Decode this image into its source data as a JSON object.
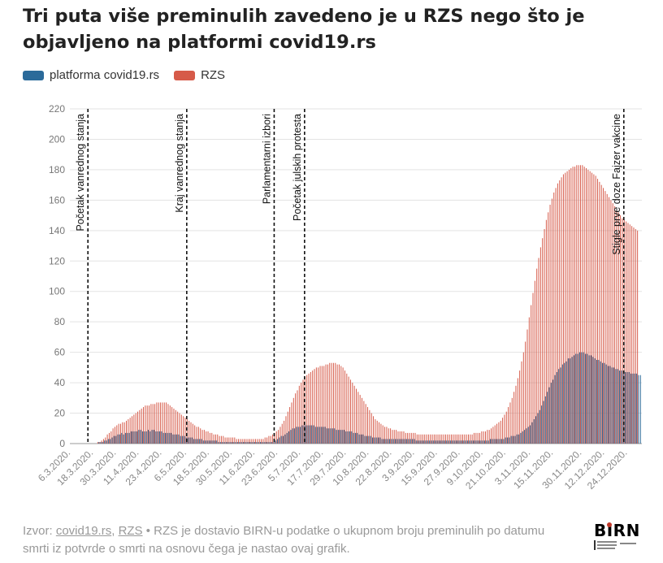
{
  "title": "Tri puta više preminulih zavedeno je u RZS nego što je objavljeno na platformi covid19.rs",
  "legend": [
    {
      "label": "platforma covid19.rs",
      "color": "#2b6a9a"
    },
    {
      "label": "RZS",
      "color": "#d65a49"
    }
  ],
  "footer": {
    "prefix": "Izvor: ",
    "source1": "covid19.rs",
    "sep": ", ",
    "source2": "RZS",
    "text": " • RZS je dostavio BIRN-u podatke o ukupnom broju preminulih po datumu smrti iz potvrde o smrti na osnovu čega je nastao ovaj grafik."
  },
  "logo": {
    "text": "BIRN",
    "subtext": "BALKAN INVESTIGATIVE REPORTING NETWORK · SERBIA"
  },
  "chart_data": {
    "type": "bar",
    "start_date": "2020-03-06",
    "end_date": "2020-12-31",
    "ylim": [
      0,
      220
    ],
    "yticks": [
      0,
      20,
      40,
      60,
      80,
      100,
      120,
      140,
      160,
      180,
      200,
      220
    ],
    "xticks": [
      "6.3.2020.",
      "18.3.2020.",
      "30.3.2020.",
      "11.4.2020.",
      "23.4.2020.",
      "6.5.2020.",
      "18.5.2020.",
      "30.5.2020.",
      "11.6.2020.",
      "23.6.2020.",
      "5.7.2020.",
      "17.7.2020.",
      "29.7.2020.",
      "10.8.2020.",
      "22.8.2020.",
      "3.9.2020.",
      "15.9.2020.",
      "27.9.2020.",
      "9.10.2020.",
      "21.10.2020.",
      "3.11.2020.",
      "15.11.2020.",
      "30.11.2020.",
      "12.12.2020.",
      "24.12.2020."
    ],
    "grid": true,
    "legend_position": "top-left",
    "series": [
      {
        "name": "platforma covid19.rs",
        "color": "#2b6a9a",
        "values": [
          0,
          0,
          0,
          0,
          0,
          0,
          0,
          0,
          0,
          0,
          0,
          0,
          0,
          0,
          0,
          1,
          1,
          1,
          2,
          2,
          3,
          3,
          4,
          5,
          5,
          6,
          6,
          7,
          6,
          7,
          7,
          7,
          8,
          8,
          8,
          8,
          9,
          9,
          8,
          8,
          8,
          9,
          8,
          9,
          9,
          8,
          8,
          8,
          8,
          7,
          7,
          7,
          7,
          7,
          6,
          6,
          6,
          6,
          5,
          5,
          5,
          4,
          4,
          4,
          4,
          3,
          3,
          3,
          3,
          3,
          2,
          2,
          2,
          2,
          2,
          2,
          2,
          2,
          1,
          1,
          1,
          1,
          1,
          1,
          1,
          1,
          1,
          1,
          1,
          1,
          1,
          1,
          1,
          1,
          1,
          1,
          1,
          1,
          1,
          1,
          1,
          1,
          1,
          1,
          1,
          1,
          1,
          1,
          2,
          3,
          4,
          5,
          5,
          6,
          7,
          8,
          9,
          10,
          10,
          11,
          11,
          11,
          12,
          12,
          12,
          12,
          12,
          12,
          12,
          11,
          11,
          11,
          11,
          11,
          11,
          10,
          10,
          10,
          10,
          10,
          9,
          9,
          9,
          9,
          9,
          8,
          8,
          8,
          8,
          7,
          7,
          7,
          6,
          6,
          6,
          5,
          5,
          5,
          5,
          4,
          4,
          4,
          4,
          4,
          3,
          3,
          3,
          3,
          3,
          3,
          3,
          3,
          3,
          3,
          3,
          3,
          3,
          3,
          3,
          3,
          3,
          3,
          2,
          2,
          2,
          2,
          2,
          2,
          2,
          2,
          2,
          2,
          2,
          2,
          2,
          2,
          2,
          2,
          2,
          2,
          2,
          2,
          2,
          2,
          2,
          2,
          2,
          2,
          2,
          2,
          2,
          2,
          2,
          2,
          2,
          2,
          2,
          2,
          2,
          2,
          2,
          3,
          3,
          3,
          3,
          3,
          3,
          3,
          3,
          4,
          4,
          4,
          5,
          5,
          5,
          6,
          6,
          7,
          8,
          9,
          10,
          11,
          12,
          14,
          16,
          18,
          20,
          22,
          25,
          28,
          31,
          34,
          37,
          40,
          42,
          45,
          47,
          49,
          50,
          52,
          53,
          54,
          56,
          56,
          57,
          58,
          59,
          59,
          60,
          60,
          60,
          59,
          59,
          58,
          58,
          57,
          56,
          55,
          55,
          54,
          53,
          53,
          52,
          51,
          51,
          50,
          50,
          49,
          49,
          48,
          48,
          48,
          47,
          47,
          47,
          46,
          46,
          46,
          46,
          45,
          45
        ]
      },
      {
        "name": "RZS",
        "color": "#d65a49",
        "values": [
          0,
          0,
          0,
          0,
          0,
          0,
          0,
          0,
          0,
          0,
          0,
          0,
          0,
          0,
          1,
          1,
          2,
          3,
          4,
          6,
          7,
          8,
          10,
          11,
          12,
          13,
          13,
          14,
          14,
          15,
          16,
          17,
          18,
          19,
          20,
          21,
          22,
          23,
          24,
          25,
          25,
          25,
          26,
          26,
          26,
          27,
          27,
          27,
          27,
          27,
          27,
          26,
          25,
          24,
          23,
          22,
          21,
          20,
          19,
          18,
          17,
          16,
          15,
          14,
          13,
          12,
          11,
          11,
          10,
          9,
          9,
          8,
          8,
          7,
          7,
          6,
          6,
          6,
          5,
          5,
          5,
          4,
          4,
          4,
          4,
          4,
          4,
          3,
          3,
          3,
          3,
          3,
          3,
          3,
          3,
          3,
          3,
          3,
          3,
          3,
          3,
          3,
          4,
          4,
          5,
          5,
          6,
          7,
          8,
          9,
          11,
          13,
          15,
          18,
          21,
          24,
          27,
          30,
          33,
          35,
          38,
          40,
          42,
          44,
          45,
          46,
          47,
          48,
          49,
          50,
          50,
          51,
          51,
          51,
          52,
          52,
          53,
          53,
          53,
          53,
          52,
          52,
          51,
          50,
          48,
          46,
          44,
          42,
          40,
          38,
          36,
          34,
          32,
          30,
          28,
          26,
          24,
          22,
          20,
          18,
          16,
          15,
          14,
          13,
          12,
          11,
          11,
          10,
          10,
          9,
          9,
          9,
          8,
          8,
          8,
          8,
          7,
          7,
          7,
          7,
          7,
          7,
          6,
          6,
          6,
          6,
          6,
          6,
          6,
          6,
          6,
          6,
          6,
          6,
          6,
          6,
          6,
          6,
          6,
          6,
          6,
          6,
          6,
          6,
          6,
          6,
          6,
          6,
          6,
          6,
          6,
          6,
          7,
          7,
          7,
          7,
          8,
          8,
          8,
          9,
          9,
          10,
          11,
          12,
          13,
          14,
          15,
          17,
          19,
          21,
          24,
          27,
          30,
          34,
          38,
          43,
          48,
          54,
          60,
          67,
          75,
          83,
          91,
          99,
          107,
          115,
          122,
          129,
          135,
          141,
          147,
          152,
          157,
          161,
          165,
          168,
          171,
          173,
          175,
          177,
          178,
          179,
          180,
          181,
          182,
          182,
          183,
          183,
          183,
          183,
          182,
          181,
          180,
          179,
          178,
          177,
          176,
          174,
          172,
          170,
          168,
          166,
          164,
          162,
          160,
          158,
          156,
          154,
          152,
          150,
          148,
          147,
          146,
          145,
          144,
          143,
          142,
          141,
          140
        ]
      }
    ],
    "annotations": [
      {
        "date": "2020-03-15",
        "label": "Početak vanrednog stanja"
      },
      {
        "date": "2020-05-06",
        "label": "Kraj vanrednog stanja"
      },
      {
        "date": "2020-06-21",
        "label": "Parlamentarni izbori"
      },
      {
        "date": "2020-07-07",
        "label": "Početak julskih protesta"
      },
      {
        "date": "2020-12-22",
        "label": "Stigle prve doze Fajzer vakcine"
      }
    ]
  }
}
